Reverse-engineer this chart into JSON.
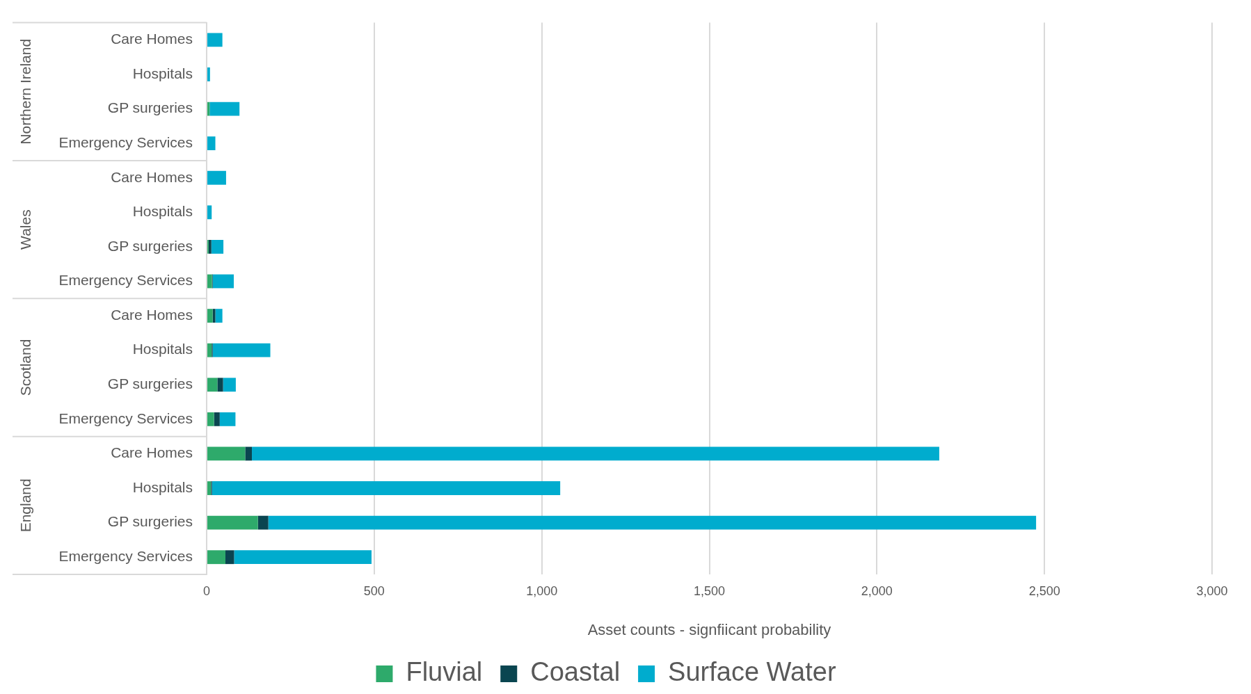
{
  "chart_data": {
    "type": "bar",
    "orientation": "horizontal",
    "stacked": true,
    "categories": [
      "Care Homes",
      "Hospitals",
      "GP surgeries",
      "Emergency Services",
      "Care Homes",
      "Hospitals",
      "GP surgeries",
      "Emergency Services",
      "Care Homes",
      "Hospitals",
      "GP surgeries",
      "Emergency Services",
      "Care Homes",
      "Hospitals",
      "GP surgeries",
      "Emergency Services"
    ],
    "series": [
      {
        "name": "Fluvial",
        "color": "#2eaa6b",
        "values": [
          0,
          0,
          9,
          0,
          0,
          0,
          6,
          16,
          18,
          15,
          32,
          22,
          115,
          13,
          153,
          56
        ]
      },
      {
        "name": "Coastal",
        "color": "#0a4550",
        "values": [
          0,
          0,
          0,
          0,
          0,
          0,
          8,
          2,
          8,
          3,
          17,
          17,
          20,
          3,
          31,
          26
        ]
      },
      {
        "name": "Surface Water",
        "color": "#00acce",
        "values": [
          47,
          10,
          89,
          26,
          58,
          15,
          36,
          63,
          21,
          172,
          38,
          47,
          2051,
          1039,
          2291,
          410
        ]
      }
    ],
    "xlabel": "Asset counts - signfiicant probability",
    "xlim": [
      0,
      3000
    ],
    "xticks": [
      0,
      500,
      {
        "value": 1000,
        "label": "1,000"
      },
      {
        "value": 1500,
        "label": "1,500"
      },
      {
        "value": 2000,
        "label": "2,000"
      },
      {
        "value": 2500,
        "label": "2,500"
      },
      {
        "value": 3000,
        "label": "3,000"
      }
    ],
    "grid": "x",
    "legend": "bottom",
    "annotations": [
      "Northern Ireland",
      "Wales",
      "Scotland",
      "England"
    ]
  }
}
